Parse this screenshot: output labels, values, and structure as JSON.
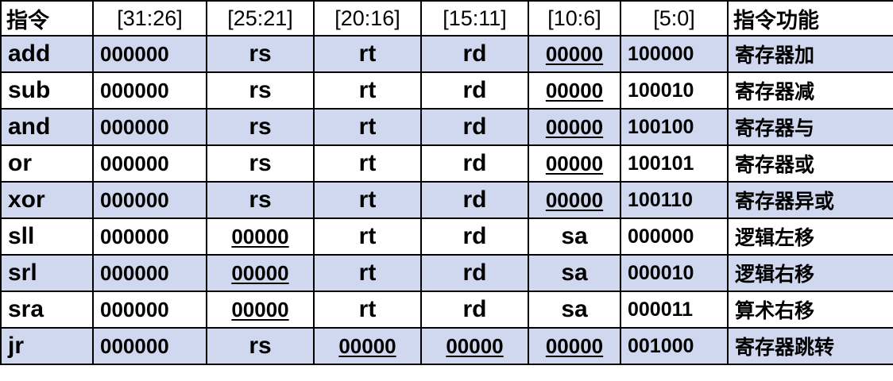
{
  "headers": [
    "指令",
    "[31:26]",
    "[25:21]",
    "[20:16]",
    "[15:11]",
    "[10:6]",
    "[5:0]",
    "指令功能"
  ],
  "rows": [
    {
      "cells": [
        "add",
        "000000",
        "rs",
        "rt",
        "rd",
        "00000",
        "100000",
        "寄存器加"
      ],
      "shaded": true,
      "kinds": [
        "mnem",
        "bin",
        "reg",
        "reg",
        "reg",
        "zero",
        "func",
        "desc"
      ]
    },
    {
      "cells": [
        "sub",
        "000000",
        "rs",
        "rt",
        "rd",
        "00000",
        "100010",
        "寄存器减"
      ],
      "shaded": false,
      "kinds": [
        "mnem",
        "bin",
        "reg",
        "reg",
        "reg",
        "zero",
        "func",
        "desc"
      ]
    },
    {
      "cells": [
        "and",
        "000000",
        "rs",
        "rt",
        "rd",
        "00000",
        "100100",
        "寄存器与"
      ],
      "shaded": true,
      "kinds": [
        "mnem",
        "bin",
        "reg",
        "reg",
        "reg",
        "zero",
        "func",
        "desc"
      ]
    },
    {
      "cells": [
        "or",
        "000000",
        "rs",
        "rt",
        "rd",
        "00000",
        "100101",
        "寄存器或"
      ],
      "shaded": false,
      "kinds": [
        "mnem",
        "bin",
        "reg",
        "reg",
        "reg",
        "zero",
        "func",
        "desc"
      ]
    },
    {
      "cells": [
        "xor",
        "000000",
        "rs",
        "rt",
        "rd",
        "00000",
        "100110",
        "寄存器异或"
      ],
      "shaded": true,
      "kinds": [
        "mnem",
        "bin",
        "reg",
        "reg",
        "reg",
        "zero",
        "func",
        "desc"
      ]
    },
    {
      "cells": [
        "sll",
        "000000",
        "00000",
        "rt",
        "rd",
        "sa",
        "000000",
        "逻辑左移"
      ],
      "shaded": false,
      "kinds": [
        "mnem",
        "bin",
        "zero",
        "reg",
        "reg",
        "reg",
        "func",
        "desc"
      ]
    },
    {
      "cells": [
        "srl",
        "000000",
        "00000",
        "rt",
        "rd",
        "sa",
        "000010",
        "逻辑右移"
      ],
      "shaded": true,
      "kinds": [
        "mnem",
        "bin",
        "zero",
        "reg",
        "reg",
        "reg",
        "func",
        "desc"
      ]
    },
    {
      "cells": [
        "sra",
        "000000",
        "00000",
        "rt",
        "rd",
        "sa",
        "000011",
        "算术右移"
      ],
      "shaded": false,
      "kinds": [
        "mnem",
        "bin",
        "zero",
        "reg",
        "reg",
        "reg",
        "func",
        "desc"
      ]
    },
    {
      "cells": [
        "jr",
        "000000",
        "rs",
        "00000",
        "00000",
        "00000",
        "001000",
        "寄存器跳转"
      ],
      "shaded": true,
      "kinds": [
        "mnem",
        "bin",
        "reg",
        "zero",
        "zero",
        "zero",
        "func",
        "desc"
      ]
    }
  ]
}
